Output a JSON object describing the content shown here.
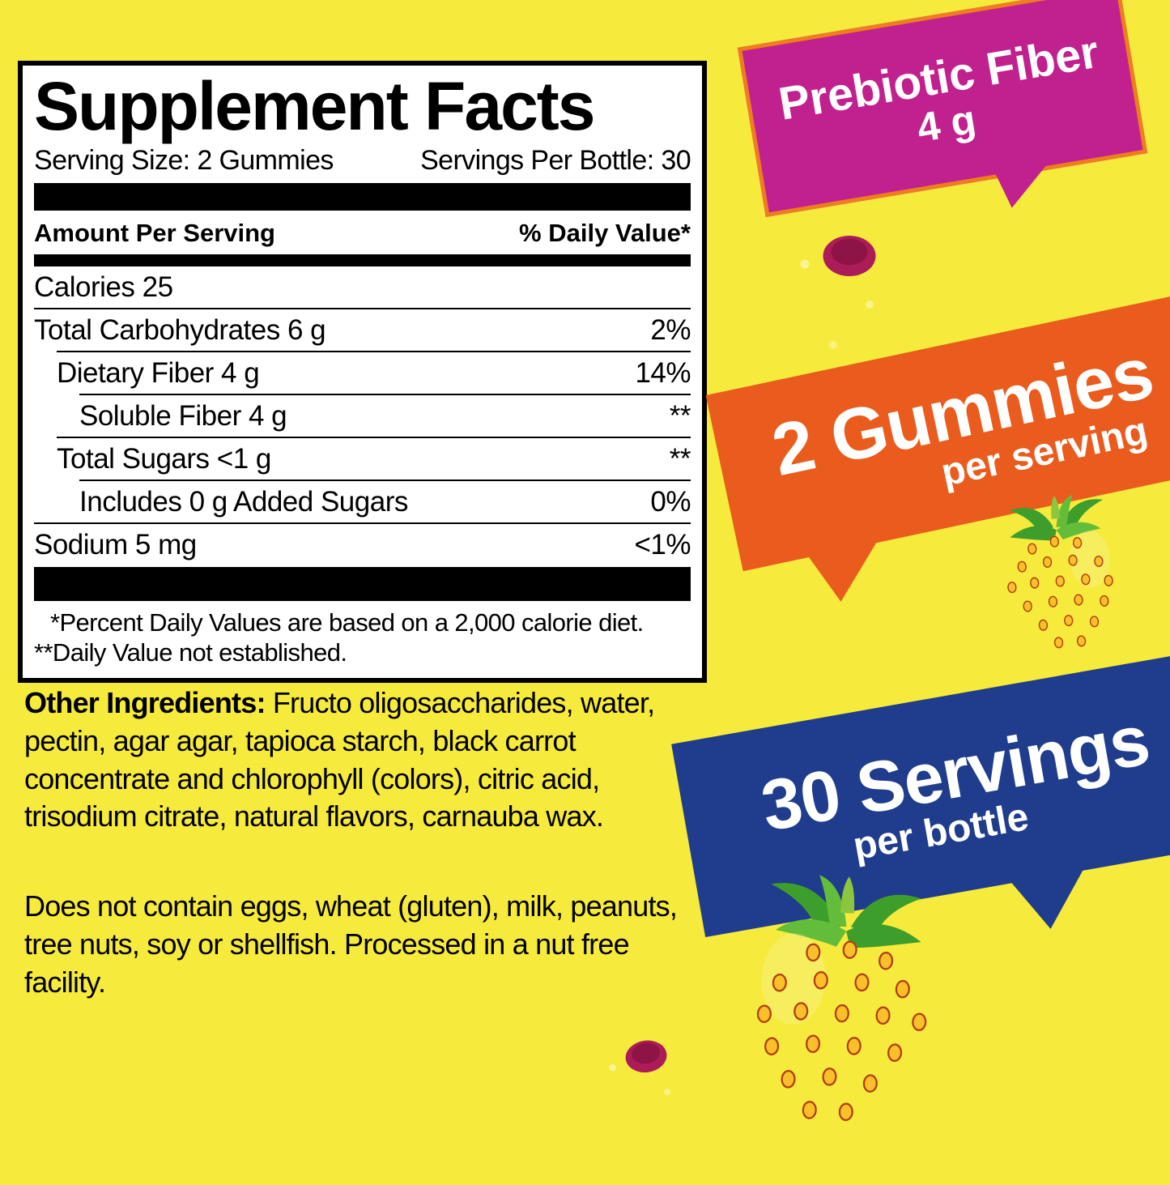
{
  "background_color": "#F6EB3C",
  "supplement_facts": {
    "title": "Supplement Facts",
    "serving_size": "Serving Size: 2 Gummies",
    "servings_per_bottle": "Servings Per Bottle: 30",
    "amount_header": "Amount Per Serving",
    "dv_header": "% Daily Value*",
    "rows": [
      {
        "label": "Calories 25",
        "value": "",
        "indent": 0
      },
      {
        "label": "Total Carbohydrates 6 g",
        "value": "2%",
        "indent": 0
      },
      {
        "label": "Dietary Fiber 4 g",
        "value": "14%",
        "indent": 1
      },
      {
        "label": "Soluble Fiber 4 g",
        "value": "**",
        "indent": 2
      },
      {
        "label": "Total Sugars <1 g",
        "value": "**",
        "indent": 1
      },
      {
        "label": "Includes 0 g Added Sugars",
        "value": "0%",
        "indent": 2
      },
      {
        "label": "Sodium 5 mg",
        "value": "<1%",
        "indent": 0
      }
    ],
    "footnote1": "*Percent Daily Values are based on a 2,000 calorie diet.",
    "footnote2": "**Daily Value not established."
  },
  "other_ingredients": {
    "lead": "Other Ingredients:",
    "text": " Fructo oligosaccharides, water, pectin, agar agar, tapioca starch, black carrot concentrate and chlorophyll (colors), citric acid, trisodium citrate, natural flavors, carnauba wax."
  },
  "allergen_statement": "Does not contain eggs, wheat (gluten), milk, peanuts, tree nuts, soy or shellfish. Processed in a nut free facility.",
  "badges": {
    "prebiotic": {
      "line1": "Prebiotic Fiber",
      "line2": "4 g",
      "bg": "#C1208F",
      "border": "#EE7D21"
    },
    "gummies": {
      "line1": "2 Gummies",
      "line2": "per serving",
      "bg": "#E95C1D"
    },
    "servings": {
      "line1": "30 Servings",
      "line2": "per bottle",
      "bg": "#1F3D8C"
    }
  },
  "images": {
    "raspberry_top": "raspberry gummy photo",
    "strawberry_small": "strawberry photo",
    "strawberry_big": "strawberry photo",
    "raspberry_bottom": "raspberry gummy photo"
  }
}
